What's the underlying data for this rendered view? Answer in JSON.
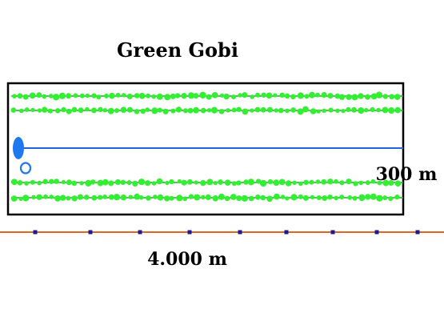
{
  "diagram": {
    "title": "Green Gobi",
    "width_label": "300 m",
    "length_label": "4.000 m",
    "tree_rows": 4,
    "markers_on_track": 9
  },
  "colors": {
    "background": "#ffffff",
    "field_border": "#000000",
    "tree_green": "#33ee33",
    "row_line_green": "#22aa22",
    "center_line": "#2266dd",
    "well_fill": "#1e78ee",
    "track_line": "#dd6622",
    "marker_fill": "#1a1a99",
    "text": "#000000"
  },
  "icons": {
    "well": "filled-ellipse",
    "pump": "hollow-circle",
    "marker": "small-square",
    "tree": "green-dot"
  }
}
